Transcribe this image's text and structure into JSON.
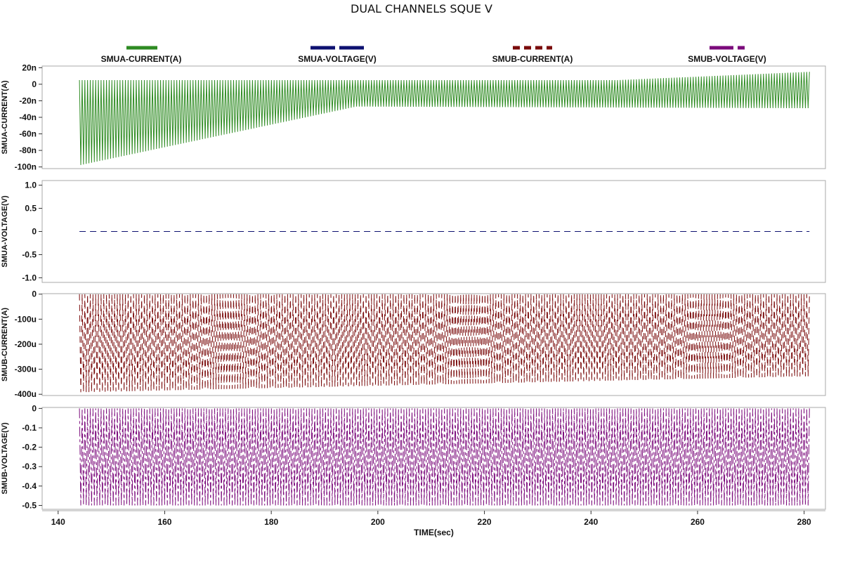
{
  "chart_data": {
    "type": "line",
    "title": "DUAL CHANNELS SQUE V",
    "xlabel": "TIME(sec)",
    "xlim": [
      137,
      284
    ],
    "xticks": [
      140,
      160,
      180,
      200,
      220,
      240,
      260,
      280
    ],
    "grid": false,
    "legend_position": "top",
    "time_range": [
      144,
      281
    ],
    "series": [
      {
        "name": "SMUA-CURRENT(A)",
        "ylabel": "SMUA-CURRENT(A)",
        "color": "#2e8b22",
        "dash": "solid",
        "ylim": [
          -102,
          22
        ],
        "yticks": [
          20,
          0,
          -20,
          -40,
          -60,
          -80,
          -100
        ],
        "yticklabels": [
          "20n",
          "0",
          "-20n",
          "-40n",
          "-60n",
          "-80n",
          "-100n"
        ],
        "upper_envelope": [
          [
            144,
            5
          ],
          [
            200,
            5
          ],
          [
            230,
            5
          ],
          [
            245,
            5
          ],
          [
            281,
            15
          ]
        ],
        "lower_envelope": [
          [
            144,
            -98
          ],
          [
            196,
            -27
          ],
          [
            281,
            -29
          ]
        ]
      },
      {
        "name": "SMUA-VOLTAGE(V)",
        "ylabel": "SMUA-VOLTAGE(V)",
        "color": "#0d1170",
        "dash": "dashed",
        "ylim": [
          -1.1,
          1.1
        ],
        "yticks": [
          1.0,
          0.5,
          0,
          -0.5,
          -1.0
        ],
        "yticklabels": [
          "1.0",
          "0.5",
          "0",
          "-0.5",
          "-1.0"
        ],
        "upper_envelope": [
          [
            144,
            0
          ],
          [
            281,
            0
          ]
        ],
        "lower_envelope": [
          [
            144,
            0
          ],
          [
            281,
            0
          ]
        ]
      },
      {
        "name": "SMUB-CURRENT(A)",
        "ylabel": "SMUB-CURRENT(A)",
        "color": "#7a0b0b",
        "dash": "dashed",
        "ylim": [
          -405,
          2
        ],
        "yticks": [
          0,
          -100,
          -200,
          -300,
          -400
        ],
        "yticklabels": [
          "0",
          "-100u",
          "-200u",
          "-300u",
          "-400u"
        ],
        "upper_envelope": [
          [
            144,
            0
          ],
          [
            281,
            0
          ]
        ],
        "lower_envelope": [
          [
            144,
            -392
          ],
          [
            281,
            -328
          ]
        ]
      },
      {
        "name": "SMUB-VOLTAGE(V)",
        "ylabel": "SMUB-VOLTAGE(V)",
        "color": "#7b0a7b",
        "dash": "dashdot",
        "ylim": [
          -0.52,
          0.005
        ],
        "yticks": [
          0,
          -0.1,
          -0.2,
          -0.3,
          -0.4,
          -0.5
        ],
        "yticklabels": [
          "0",
          "-0.1",
          "-0.2",
          "-0.3",
          "-0.4",
          "-0.5"
        ],
        "upper_envelope": [
          [
            144,
            0
          ],
          [
            281,
            0
          ]
        ],
        "lower_envelope": [
          [
            144,
            -0.5
          ],
          [
            281,
            -0.5
          ]
        ]
      }
    ]
  }
}
